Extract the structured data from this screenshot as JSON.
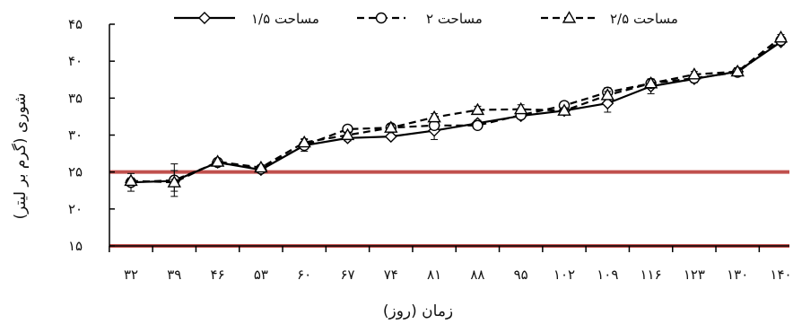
{
  "chart_data": {
    "type": "line",
    "xlabel": "زمان (روز)",
    "ylabel": "شوری (گرم بر لیتر)",
    "ylim": [
      15,
      45
    ],
    "y_ticks": [
      "۱۵",
      "۲۰",
      "۲۵",
      "۳۰",
      "۳۵",
      "۴۰",
      "۴۵"
    ],
    "y_tick_values": [
      15,
      20,
      25,
      30,
      35,
      40,
      45
    ],
    "categories": [
      "۳۲",
      "۳۹",
      "۴۶",
      "۵۳",
      "۶۰",
      "۶۷",
      "۷۴",
      "۸۱",
      "۸۸",
      "۹۵",
      "۱۰۲",
      "۱۰۹",
      "۱۱۶",
      "۱۲۳",
      "۱۳۰",
      "۱۴۰"
    ],
    "grid": false,
    "legend_position": "top",
    "reference_lines": [
      {
        "y": 25,
        "color": "#c0504d"
      },
      {
        "y": 15,
        "color": "#c0504d"
      }
    ],
    "series": [
      {
        "name": "مساحت ۱/۵",
        "marker": "diamond",
        "dash": "solid",
        "values": [
          23.6,
          23.8,
          26.3,
          25.3,
          28.6,
          29.6,
          29.8,
          30.6,
          31.6,
          32.6,
          33.3,
          34.3,
          36.6,
          37.6,
          38.6,
          42.6
        ],
        "error": [
          1.2,
          1.4,
          0.4,
          0.3,
          0.5,
          0.4,
          0.3,
          1.2,
          0.4,
          0.4,
          0.4,
          1.2,
          1.0,
          0.5,
          0.5,
          0.4
        ]
      },
      {
        "name": "مساحت ۲",
        "marker": "circle",
        "dash": "dash",
        "values": [
          23.6,
          23.9,
          26.3,
          25.4,
          28.6,
          30.8,
          31.0,
          31.3,
          31.3,
          32.7,
          34.0,
          35.8,
          37.0,
          37.7,
          38.5,
          42.8
        ],
        "error": [
          0.5,
          2.2,
          0.4,
          0.3,
          0.8,
          0.5,
          0.4,
          0.5,
          0.4,
          0.4,
          0.4,
          0.6,
          0.6,
          0.4,
          0.5,
          0.4
        ]
      },
      {
        "name": "مساحت ۲/۵",
        "marker": "triangle",
        "dash": "dash",
        "values": [
          23.8,
          23.6,
          26.4,
          25.6,
          29.0,
          30.0,
          31.0,
          32.4,
          33.4,
          33.5,
          33.3,
          35.4,
          37.0,
          38.2,
          38.6,
          43.2
        ],
        "error": [
          0.4,
          0.4,
          0.4,
          0.3,
          0.5,
          0.4,
          0.4,
          0.5,
          0.5,
          0.6,
          0.4,
          0.5,
          0.5,
          0.4,
          0.5,
          0.4
        ]
      }
    ]
  }
}
